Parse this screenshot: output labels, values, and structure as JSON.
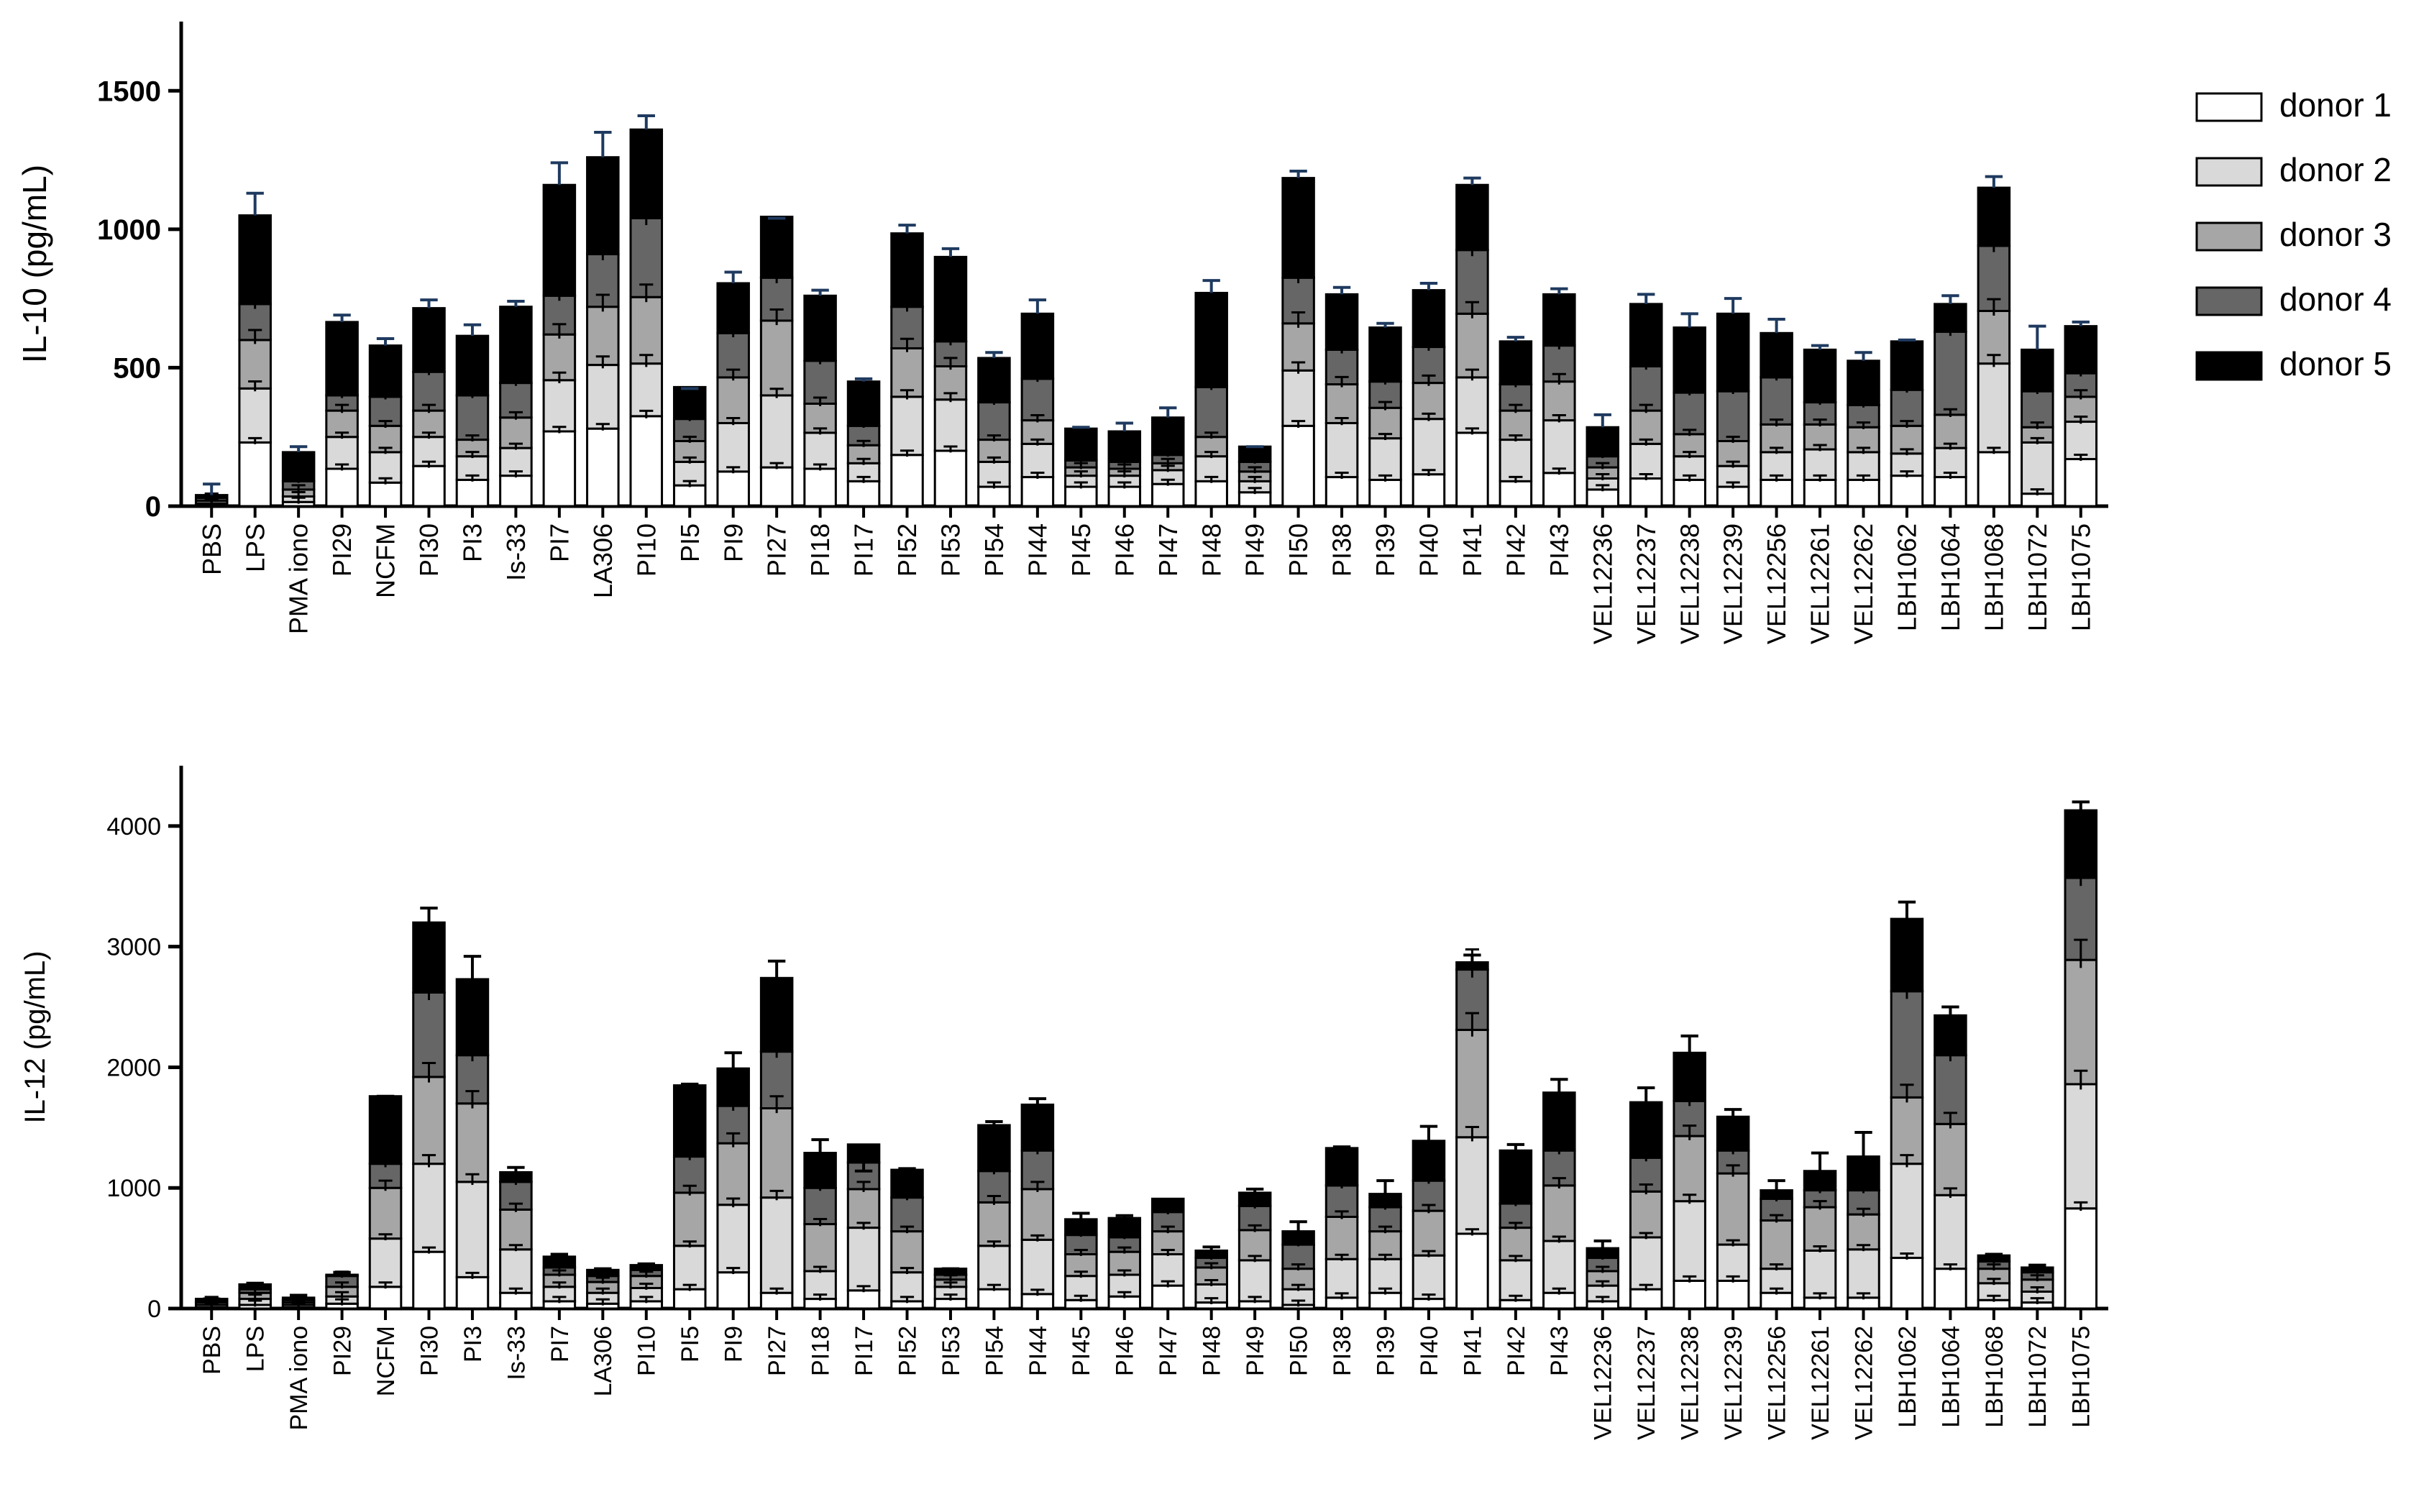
{
  "legend": [
    {
      "label": "donor 1",
      "color": "#ffffff"
    },
    {
      "label": "donor 2",
      "color": "#d9d9d9"
    },
    {
      "label": "donor 3",
      "color": "#a6a6a6"
    },
    {
      "label": "donor 4",
      "color": "#666666"
    },
    {
      "label": "donor 5",
      "color": "#000000"
    }
  ],
  "chart_data": [
    {
      "type": "bar",
      "stacked": true,
      "title": "",
      "xlabel": "",
      "ylabel": "IL-10 (pg/mL)",
      "ylim": [
        0,
        1750
      ],
      "yticks": [
        0,
        500,
        1000,
        1500
      ],
      "grid": false,
      "legend_position": "right",
      "categories": [
        "PBS",
        "LPS",
        "PMA iono",
        "PI29",
        "NCFM",
        "PI30",
        "PI3",
        "Is-33",
        "PI7",
        "LA306",
        "PI10",
        "PI5",
        "PI9",
        "PI27",
        "PI18",
        "PI17",
        "PI52",
        "PI53",
        "PI54",
        "PI44",
        "PI45",
        "PI46",
        "PI47",
        "PI48",
        "PI49",
        "PI50",
        "PI38",
        "PI39",
        "PI40",
        "PI41",
        "PI42",
        "PI43",
        "VEL12236",
        "VEL12237",
        "VEL12238",
        "VEL12239",
        "VEL12256",
        "VEL12261",
        "VEL12262",
        "LBH1062",
        "LBH1064",
        "LBH1068",
        "LBH1072",
        "LBH1075"
      ],
      "series": [
        {
          "name": "donor 1",
          "values": [
            5,
            230,
            15,
            135,
            85,
            145,
            95,
            110,
            270,
            280,
            325,
            75,
            125,
            140,
            135,
            90,
            185,
            200,
            70,
            105,
            70,
            70,
            80,
            90,
            50,
            290,
            105,
            95,
            115,
            265,
            90,
            120,
            60,
            100,
            95,
            70,
            95,
            95,
            95,
            110,
            105,
            195,
            45,
            170
          ]
        },
        {
          "name": "donor 2",
          "values": [
            5,
            195,
            20,
            115,
            110,
            105,
            85,
            100,
            185,
            230,
            190,
            85,
            175,
            260,
            130,
            65,
            210,
            185,
            90,
            120,
            40,
            40,
            50,
            90,
            40,
            200,
            195,
            150,
            200,
            200,
            150,
            190,
            40,
            125,
            85,
            75,
            100,
            110,
            100,
            80,
            105,
            320,
            185,
            135
          ]
        },
        {
          "name": "donor 3",
          "values": [
            10,
            175,
            25,
            95,
            95,
            95,
            60,
            110,
            165,
            210,
            240,
            75,
            165,
            270,
            105,
            65,
            175,
            120,
            80,
            85,
            30,
            25,
            25,
            70,
            35,
            170,
            140,
            110,
            130,
            230,
            105,
            140,
            40,
            120,
            80,
            90,
            100,
            90,
            90,
            100,
            120,
            190,
            55,
            90
          ]
        },
        {
          "name": "donor 4",
          "values": [
            10,
            130,
            30,
            55,
            105,
            140,
            160,
            125,
            140,
            190,
            285,
            80,
            160,
            155,
            155,
            70,
            150,
            90,
            135,
            150,
            25,
            25,
            30,
            180,
            35,
            165,
            125,
            95,
            130,
            230,
            95,
            130,
            40,
            160,
            150,
            180,
            170,
            80,
            80,
            130,
            300,
            235,
            130,
            85
          ]
        },
        {
          "name": "donor 5",
          "values": [
            10,
            320,
            105,
            265,
            185,
            230,
            215,
            275,
            400,
            350,
            320,
            115,
            180,
            220,
            235,
            160,
            265,
            305,
            160,
            235,
            115,
            110,
            135,
            340,
            55,
            360,
            200,
            195,
            205,
            235,
            155,
            185,
            105,
            225,
            235,
            280,
            160,
            190,
            160,
            175,
            100,
            210,
            150,
            170
          ]
        }
      ],
      "error_top": [
        80,
        1130,
        215,
        690,
        605,
        745,
        655,
        740,
        1240,
        1350,
        1410,
        425,
        845,
        1040,
        780,
        460,
        1015,
        930,
        555,
        745,
        285,
        300,
        355,
        815,
        215,
        1210,
        790,
        660,
        805,
        1185,
        610,
        785,
        330,
        765,
        695,
        750,
        675,
        580,
        555,
        600,
        760,
        1190,
        650,
        665
      ]
    },
    {
      "type": "bar",
      "stacked": true,
      "title": "",
      "xlabel": "",
      "ylabel": "IL-12 (pg/mL)",
      "ylim": [
        0,
        4500
      ],
      "yticks": [
        0,
        1000,
        2000,
        3000,
        4000
      ],
      "grid": false,
      "categories": [
        "PBS",
        "LPS",
        "PMA iono",
        "PI29",
        "NCFM",
        "PI30",
        "PI3",
        "Is-33",
        "PI7",
        "LA306",
        "PI10",
        "PI5",
        "PI9",
        "PI27",
        "PI18",
        "PI17",
        "PI52",
        "PI53",
        "PI54",
        "PI44",
        "PI45",
        "PI46",
        "PI47",
        "PI48",
        "PI49",
        "PI50",
        "PI38",
        "PI39",
        "PI40",
        "PI41",
        "PI42",
        "PI43",
        "VEL12236",
        "VEL12237",
        "VEL12238",
        "VEL12239",
        "VEL12256",
        "VEL12261",
        "VEL12262",
        "LBH1062",
        "LBH1064",
        "LBH1068",
        "LBH1072",
        "LBH1075"
      ],
      "series": [
        {
          "name": "donor 1",
          "values": [
            10,
            30,
            10,
            40,
            180,
            470,
            260,
            130,
            60,
            40,
            60,
            160,
            300,
            130,
            80,
            150,
            60,
            80,
            160,
            120,
            70,
            100,
            190,
            50,
            60,
            30,
            90,
            130,
            80,
            620,
            70,
            130,
            60,
            160,
            230,
            230,
            130,
            90,
            90,
            420,
            330,
            70,
            50,
            830
          ]
        },
        {
          "name": "donor 2",
          "values": [
            20,
            50,
            20,
            60,
            400,
            730,
            790,
            360,
            120,
            90,
            110,
            360,
            560,
            790,
            230,
            520,
            240,
            100,
            360,
            450,
            200,
            180,
            260,
            150,
            340,
            130,
            320,
            280,
            360,
            800,
            330,
            430,
            130,
            430,
            660,
            300,
            200,
            390,
            400,
            780,
            610,
            140,
            90,
            1030
          ]
        },
        {
          "name": "donor 3",
          "values": [
            20,
            50,
            20,
            80,
            420,
            720,
            650,
            330,
            100,
            90,
            100,
            440,
            510,
            740,
            390,
            320,
            340,
            60,
            360,
            420,
            180,
            190,
            190,
            140,
            250,
            170,
            350,
            230,
            370,
            890,
            270,
            460,
            120,
            380,
            540,
            590,
            400,
            360,
            290,
            550,
            590,
            120,
            100,
            1030
          ]
        },
        {
          "name": "donor 4",
          "values": [
            10,
            30,
            20,
            90,
            200,
            700,
            400,
            230,
            60,
            50,
            50,
            300,
            310,
            470,
            300,
            220,
            280,
            40,
            260,
            320,
            160,
            120,
            160,
            80,
            200,
            200,
            260,
            200,
            250,
            500,
            200,
            290,
            110,
            280,
            290,
            190,
            180,
            140,
            200,
            880,
            570,
            60,
            60,
            680
          ]
        },
        {
          "name": "donor 5",
          "values": [
            20,
            40,
            20,
            10,
            560,
            580,
            630,
            80,
            90,
            50,
            40,
            590,
            310,
            610,
            290,
            150,
            230,
            50,
            380,
            380,
            130,
            160,
            110,
            60,
            110,
            110,
            310,
            110,
            330,
            60,
            440,
            480,
            80,
            460,
            400,
            280,
            70,
            160,
            280,
            600,
            330,
            50,
            40,
            560
          ]
        }
      ],
      "error_top": [
        80,
        210,
        110,
        300,
        1760,
        3320,
        2920,
        1170,
        450,
        330,
        370,
        1860,
        2120,
        2880,
        1400,
        1140,
        1160,
        330,
        1550,
        1740,
        790,
        770,
        870,
        510,
        990,
        720,
        1340,
        1060,
        1510,
        2930,
        1360,
        1900,
        560,
        1830,
        2260,
        1650,
        1060,
        1290,
        1460,
        3370,
        2500,
        450,
        360,
        4200
      ]
    }
  ]
}
